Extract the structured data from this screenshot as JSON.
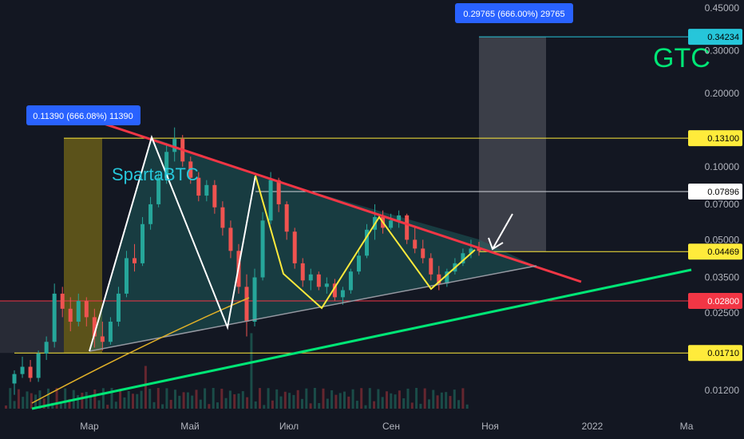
{
  "chart_data": {
    "type": "candlestick",
    "symbol_label": "GTC",
    "watermark": "SpartaBTC",
    "x_ticks": [
      "Мар",
      "Май",
      "Июл",
      "Сен",
      "Ноя",
      "2022",
      "Ма"
    ],
    "y_scale": "log",
    "y_ticks": [
      0.45,
      0.3,
      0.2,
      0.1,
      0.07,
      0.05,
      0.035,
      0.025,
      0.012
    ],
    "y_tick_labels": [
      "0.45000",
      "0.30000",
      "0.20000",
      "0.10000",
      "0.07000",
      "0.05000",
      "0.03500",
      "0.02500",
      "0.01200"
    ],
    "levels": [
      {
        "label": "0.34234",
        "value": 0.34234,
        "color": "#26c6da"
      },
      {
        "label": "0.13100",
        "value": 0.131,
        "color": "#ffeb3b"
      },
      {
        "label": "0.07896",
        "value": 0.07896,
        "color": "#ffffff"
      },
      {
        "label": "0.04469",
        "value": 0.04469,
        "color": "#ffeb3b"
      },
      {
        "label": "0.02800",
        "value": 0.028,
        "color": "#f23645"
      },
      {
        "label": "0.01710",
        "value": 0.0171,
        "color": "#ffeb3b"
      }
    ],
    "measure_labels": [
      "0.11390 (666.08%) 11390",
      "0.29765 (666.00%) 29765"
    ],
    "candles": [
      [
        0.0128,
        0.0145,
        0.0115,
        0.014
      ],
      [
        0.014,
        0.0165,
        0.0135,
        0.015
      ],
      [
        0.015,
        0.016,
        0.013,
        0.0135
      ],
      [
        0.0135,
        0.0175,
        0.013,
        0.017
      ],
      [
        0.017,
        0.02,
        0.016,
        0.019
      ],
      [
        0.019,
        0.033,
        0.018,
        0.03
      ],
      [
        0.03,
        0.032,
        0.024,
        0.026
      ],
      [
        0.026,
        0.029,
        0.021,
        0.023
      ],
      [
        0.023,
        0.03,
        0.022,
        0.028
      ],
      [
        0.028,
        0.029,
        0.022,
        0.024
      ],
      [
        0.024,
        0.026,
        0.018,
        0.02
      ],
      [
        0.02,
        0.023,
        0.0175,
        0.019
      ],
      [
        0.019,
        0.024,
        0.0185,
        0.023
      ],
      [
        0.023,
        0.032,
        0.022,
        0.03
      ],
      [
        0.03,
        0.045,
        0.029,
        0.042
      ],
      [
        0.042,
        0.048,
        0.037,
        0.04
      ],
      [
        0.04,
        0.062,
        0.039,
        0.058
      ],
      [
        0.058,
        0.075,
        0.055,
        0.07
      ],
      [
        0.07,
        0.095,
        0.068,
        0.09
      ],
      [
        0.09,
        0.125,
        0.085,
        0.115
      ],
      [
        0.115,
        0.145,
        0.105,
        0.13
      ],
      [
        0.13,
        0.135,
        0.1,
        0.105
      ],
      [
        0.105,
        0.11,
        0.085,
        0.09
      ],
      [
        0.09,
        0.095,
        0.072,
        0.076
      ],
      [
        0.076,
        0.088,
        0.072,
        0.084
      ],
      [
        0.084,
        0.088,
        0.064,
        0.068
      ],
      [
        0.068,
        0.072,
        0.052,
        0.056
      ],
      [
        0.056,
        0.06,
        0.042,
        0.045
      ],
      [
        0.045,
        0.048,
        0.03,
        0.032
      ],
      [
        0.032,
        0.036,
        0.02,
        0.023
      ],
      [
        0.023,
        0.038,
        0.022,
        0.035
      ],
      [
        0.035,
        0.065,
        0.034,
        0.06
      ],
      [
        0.06,
        0.095,
        0.058,
        0.088
      ],
      [
        0.088,
        0.09,
        0.065,
        0.07
      ],
      [
        0.07,
        0.072,
        0.05,
        0.054
      ],
      [
        0.054,
        0.056,
        0.038,
        0.04
      ],
      [
        0.04,
        0.042,
        0.032,
        0.034
      ],
      [
        0.034,
        0.038,
        0.031,
        0.036
      ],
      [
        0.036,
        0.037,
        0.031,
        0.032
      ],
      [
        0.032,
        0.035,
        0.03,
        0.033
      ],
      [
        0.033,
        0.0345,
        0.028,
        0.029
      ],
      [
        0.029,
        0.032,
        0.027,
        0.031
      ],
      [
        0.031,
        0.038,
        0.03,
        0.037
      ],
      [
        0.037,
        0.045,
        0.036,
        0.043
      ],
      [
        0.043,
        0.058,
        0.042,
        0.055
      ],
      [
        0.055,
        0.07,
        0.05,
        0.062
      ],
      [
        0.062,
        0.066,
        0.053,
        0.056
      ],
      [
        0.056,
        0.064,
        0.055,
        0.06
      ],
      [
        0.06,
        0.066,
        0.056,
        0.063
      ],
      [
        0.063,
        0.064,
        0.048,
        0.05
      ],
      [
        0.05,
        0.056,
        0.044,
        0.046
      ],
      [
        0.046,
        0.05,
        0.04,
        0.042
      ],
      [
        0.042,
        0.044,
        0.034,
        0.036
      ],
      [
        0.036,
        0.039,
        0.031,
        0.033
      ],
      [
        0.033,
        0.038,
        0.032,
        0.037
      ],
      [
        0.037,
        0.042,
        0.036,
        0.04
      ],
      [
        0.04,
        0.046,
        0.039,
        0.044
      ],
      [
        0.044,
        0.05,
        0.042,
        0.046
      ],
      [
        0.046,
        0.049,
        0.043,
        0.045
      ]
    ]
  }
}
